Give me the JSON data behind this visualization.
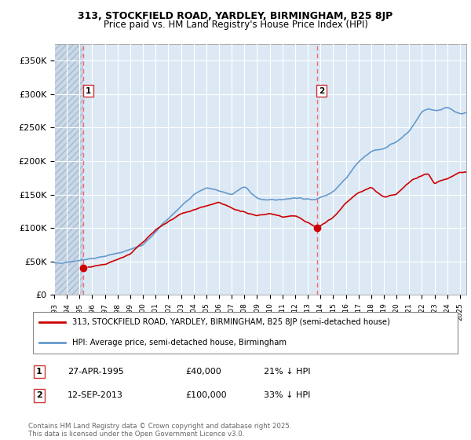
{
  "title_line1": "313, STOCKFIELD ROAD, YARDLEY, BIRMINGHAM, B25 8JP",
  "title_line2": "Price paid vs. HM Land Registry's House Price Index (HPI)",
  "background_color": "#ffffff",
  "plot_bg_color": "#dce9f5",
  "hatch_bg_color": "#c8d8e8",
  "grid_color": "#ffffff",
  "red_line_color": "#cc0000",
  "blue_line_color": "#6699cc",
  "dashed_line_color": "#ff6666",
  "sale1_year": 1995.32,
  "sale1_price": 40000,
  "sale1_label": "1",
  "sale1_date": "27-APR-1995",
  "sale1_pct": "21% ↓ HPI",
  "sale2_year": 2013.71,
  "sale2_price": 100000,
  "sale2_label": "2",
  "sale2_date": "12-SEP-2013",
  "sale2_pct": "33% ↓ HPI",
  "ylim_max": 375000,
  "legend_line1": "313, STOCKFIELD ROAD, YARDLEY, BIRMINGHAM, B25 8JP (semi-detached house)",
  "legend_line2": "HPI: Average price, semi-detached house, Birmingham",
  "footer": "Contains HM Land Registry data © Crown copyright and database right 2025.\nThis data is licensed under the Open Government Licence v3.0.",
  "yticks": [
    0,
    50000,
    100000,
    150000,
    200000,
    250000,
    300000,
    350000
  ],
  "ytick_labels": [
    "£0",
    "£50K",
    "£100K",
    "£150K",
    "£200K",
    "£250K",
    "£300K",
    "£350K"
  ],
  "xmin": 1993,
  "xmax": 2025.5
}
